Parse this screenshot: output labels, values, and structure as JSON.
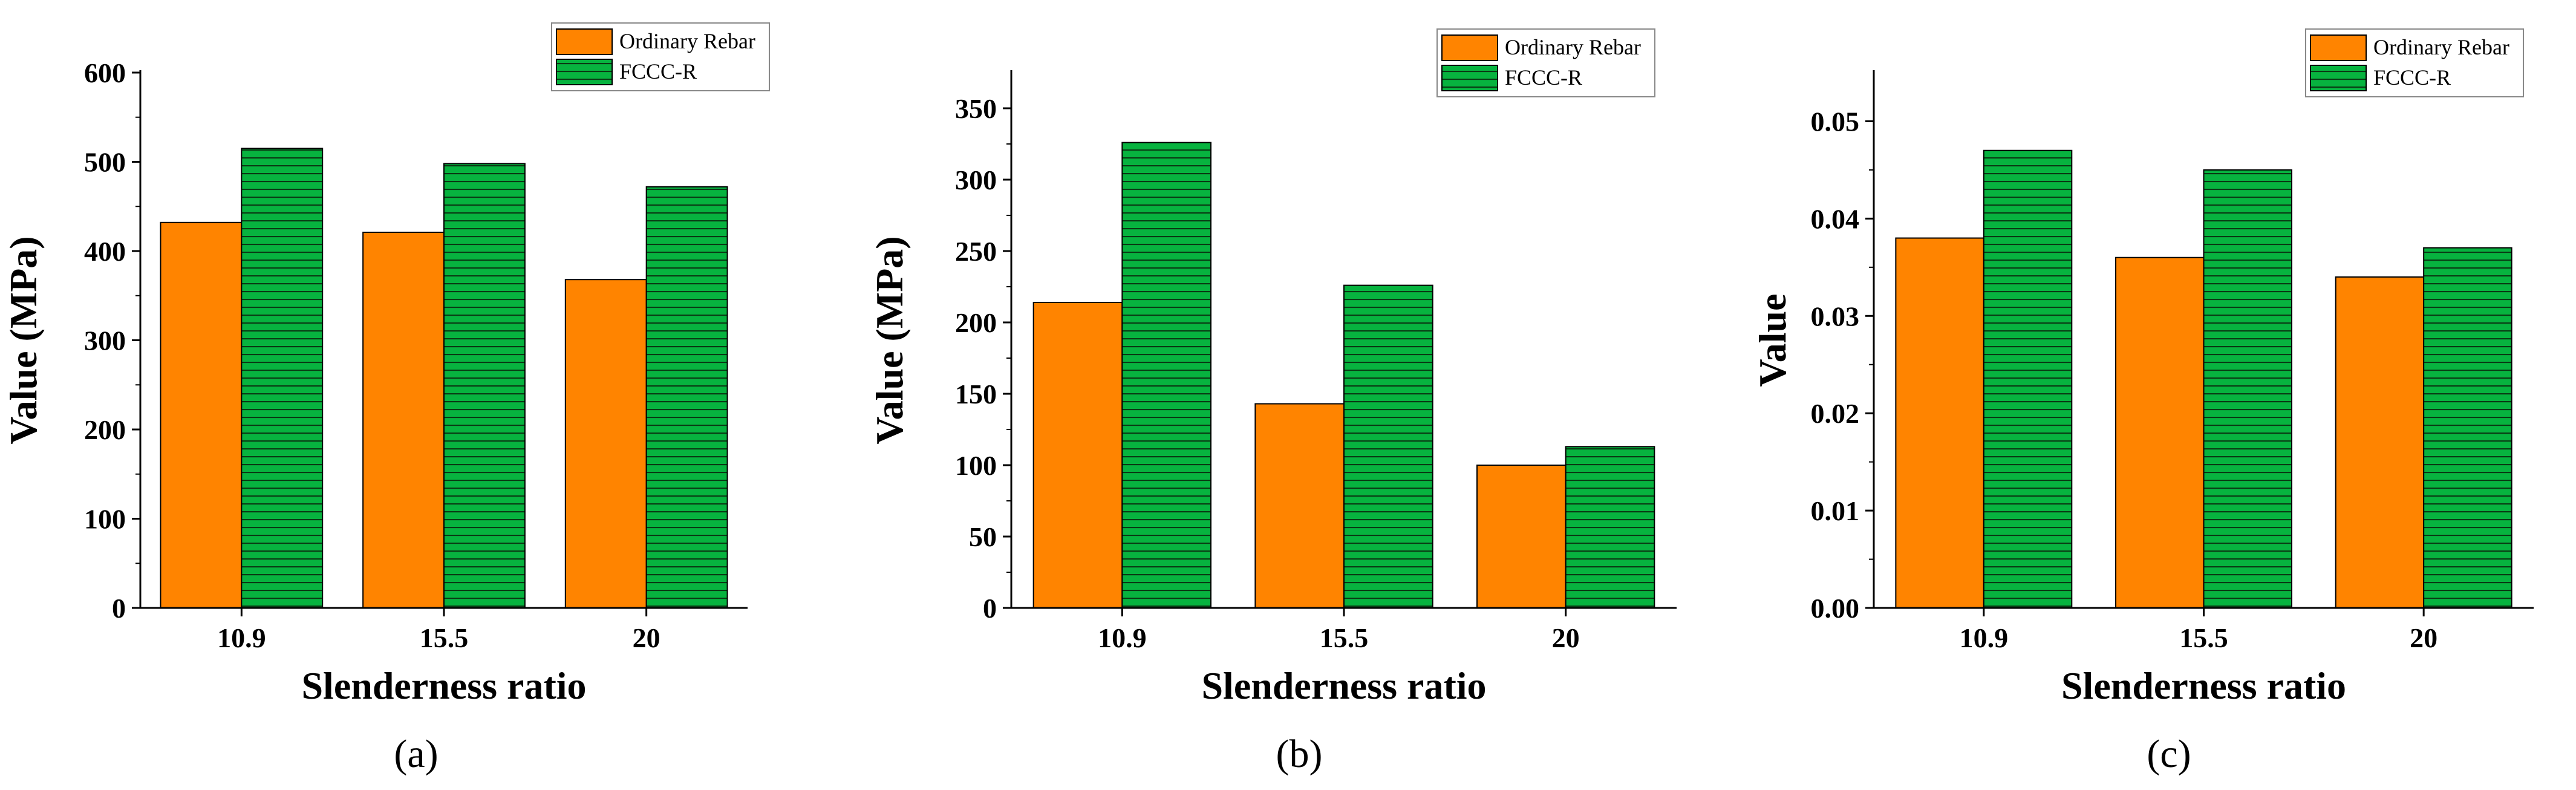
{
  "chart_data": [
    {
      "type": "bar",
      "panel_label": "(a)",
      "categories": [
        "10.9",
        "15.5",
        "20"
      ],
      "series": [
        {
          "name": "Ordinary Rebar",
          "values": [
            432,
            421,
            368
          ]
        },
        {
          "name": "FCCC-R",
          "values": [
            515,
            498,
            472
          ]
        }
      ],
      "xlabel": "Slenderness ratio",
      "ylabel": "Value (MPa)",
      "ylim": [
        0,
        600
      ],
      "yticks": [
        "0",
        "100",
        "200",
        "300",
        "400",
        "500",
        "600"
      ],
      "legend": "top-right"
    },
    {
      "type": "bar",
      "panel_label": "(b)",
      "categories": [
        "10.9",
        "15.5",
        "20"
      ],
      "series": [
        {
          "name": "Ordinary Rebar",
          "values": [
            214,
            143,
            100
          ]
        },
        {
          "name": "FCCC-R",
          "values": [
            326,
            226,
            113
          ]
        }
      ],
      "xlabel": "Slenderness ratio",
      "ylabel": "Value (MPa)",
      "ylim": [
        0,
        375
      ],
      "yticks": [
        "0",
        "50",
        "100",
        "150",
        "200",
        "250",
        "300",
        "350"
      ],
      "legend": "top-right"
    },
    {
      "type": "bar",
      "panel_label": "(c)",
      "categories": [
        "10.9",
        "15.5",
        "20"
      ],
      "series": [
        {
          "name": "Ordinary Rebar",
          "values": [
            0.038,
            0.036,
            0.034
          ]
        },
        {
          "name": "FCCC-R",
          "values": [
            0.047,
            0.045,
            0.037
          ]
        }
      ],
      "xlabel": "Slenderness ratio",
      "ylabel": "Value",
      "ylim": [
        0,
        0.055
      ],
      "yticks": [
        "0.00",
        "0.01",
        "0.02",
        "0.03",
        "0.04",
        "0.05"
      ],
      "legend": "top-right"
    }
  ],
  "colors": {
    "ordinary": "#ff8400",
    "fcccr": "#07b33f",
    "hatch": "#0a3a14"
  }
}
